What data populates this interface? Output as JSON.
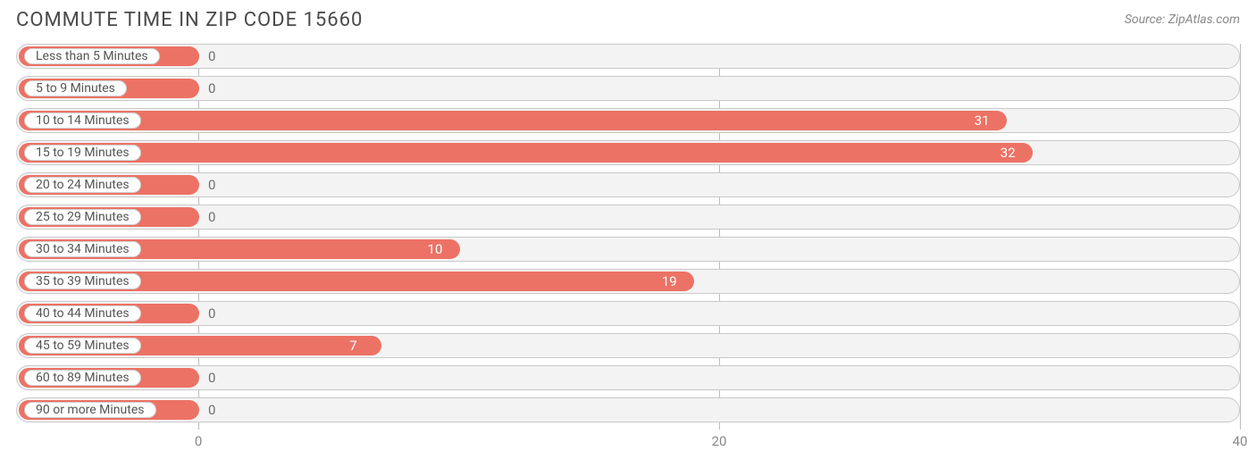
{
  "title": "COMMUTE TIME IN ZIP CODE 15660",
  "source": "Source: ZipAtlas.com",
  "chart": {
    "type": "bar-horizontal",
    "background_color": "#ffffff",
    "row_bg": "#f3f3f3",
    "row_border": "#c9c9c9",
    "bar_color": "#ec7265",
    "label_bg": "#ffffff",
    "label_border": "#d0d0d0",
    "label_text_color": "#555555",
    "value_inside_color": "#ffffff",
    "value_outside_color": "#707070",
    "grid_color": "#bdbdbd",
    "tick_label_color": "#888888",
    "title_color": "#4a4a4a",
    "title_fontsize": 22,
    "label_fontsize": 14,
    "value_fontsize": 15,
    "tick_fontsize": 15,
    "xmin": -7,
    "xmax": 40,
    "xticks": [
      0,
      20,
      40
    ],
    "bar_origin": 0,
    "label_pill_min_width_value": -7,
    "categories": [
      "Less than 5 Minutes",
      "5 to 9 Minutes",
      "10 to 14 Minutes",
      "15 to 19 Minutes",
      "20 to 24 Minutes",
      "25 to 29 Minutes",
      "30 to 34 Minutes",
      "35 to 39 Minutes",
      "40 to 44 Minutes",
      "45 to 59 Minutes",
      "60 to 89 Minutes",
      "90 or more Minutes"
    ],
    "values": [
      0,
      0,
      31,
      32,
      0,
      0,
      10,
      19,
      0,
      7,
      0,
      0
    ],
    "value_inside_threshold": 5
  }
}
